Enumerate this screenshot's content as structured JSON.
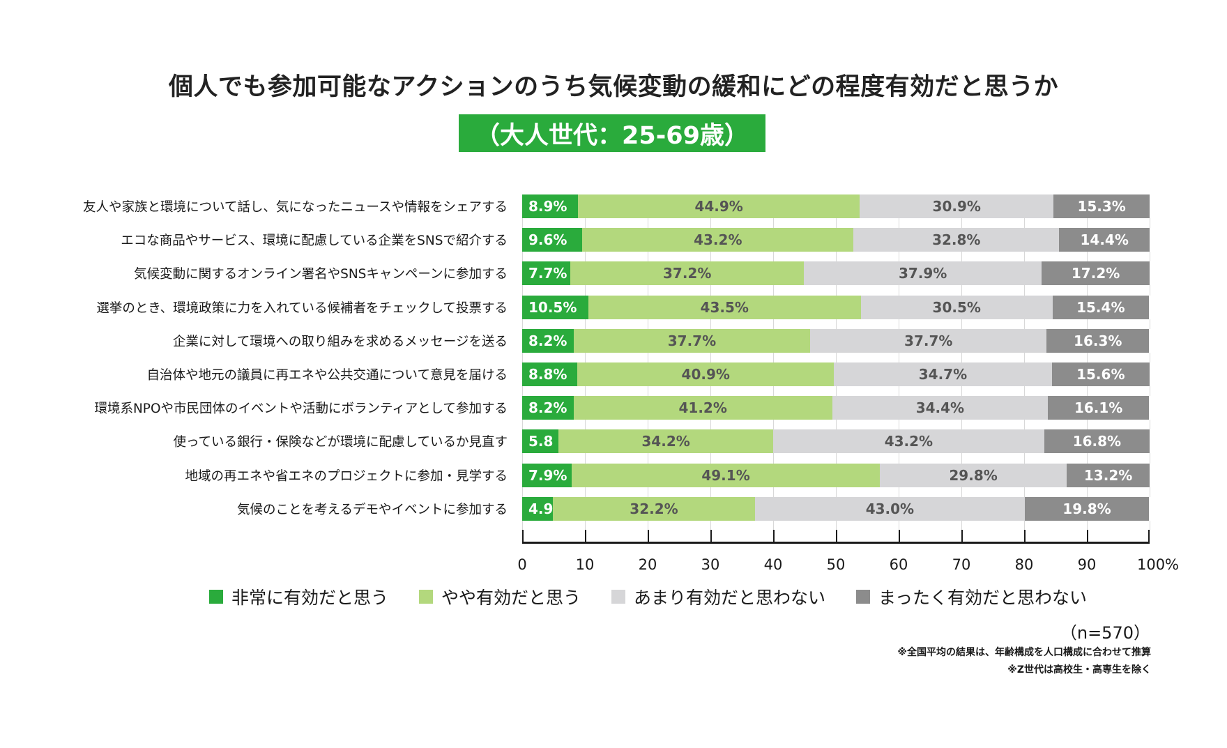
{
  "title": "個人でも参加可能なアクションのうち気候変動の緩和にどの程度有効だと思うか",
  "subtitle": "（大人世代：25-69歳）",
  "legend": [
    {
      "label": "非常に有効だと思う",
      "color": "#2aab3c"
    },
    {
      "label": "やや有効だと思う",
      "color": "#b3d87d"
    },
    {
      "label": "あまり有効だと思わない",
      "color": "#d6d6d8"
    },
    {
      "label": "まったく有効だと思わない",
      "color": "#8c8c8c"
    }
  ],
  "sample_size": "（n=570）",
  "notes": [
    "※全国平均の結果は、年齢構成を人口構成に合わせて推算",
    "※Z世代は高校生・高専生を除く"
  ],
  "chart_data": {
    "type": "bar",
    "orientation": "horizontal",
    "stacked": true,
    "title": "個人でも参加可能なアクションのうち気候変動の緩和にどの程度有効だと思うか",
    "subtitle": "（大人世代：25-69歳）",
    "xlabel": "",
    "ylabel": "",
    "xlim": [
      0,
      100
    ],
    "x_ticks": [
      "0",
      "10",
      "20",
      "30",
      "40",
      "50",
      "60",
      "70",
      "80",
      "90",
      "100%"
    ],
    "legend_position": "bottom",
    "categories": [
      "友人や家族と環境について話し、気になったニュースや情報をシェアする",
      "エコな商品やサービス、環境に配慮している企業をSNSで紹介する",
      "気候変動に関するオンライン署名やSNSキャンペーンに参加する",
      "選挙のとき、環境政策に力を入れている候補者をチェックして投票する",
      "企業に対して環境への取り組みを求めるメッセージを送る",
      "自治体や地元の議員に再エネや公共交通について意見を届ける",
      "環境系NPOや市民団体のイベントや活動にボランティアとして参加する",
      "使っている銀行・保険などが環境に配慮しているか見直す",
      "地域の再エネや省エネのプロジェクトに参加・見学する",
      "気候のことを考えるデモやイベントに参加する"
    ],
    "series": [
      {
        "name": "非常に有効だと思う",
        "color": "#2aab3c",
        "values": [
          8.9,
          9.6,
          7.7,
          10.5,
          8.2,
          8.8,
          8.2,
          5.8,
          7.9,
          4.9
        ],
        "labels": [
          "8.9%",
          "9.6%",
          "7.7%",
          "10.5%",
          "8.2%",
          "8.8%",
          "8.2%",
          "5.8",
          "7.9%",
          "4.9"
        ]
      },
      {
        "name": "やや有効だと思う",
        "color": "#b3d87d",
        "values": [
          44.9,
          43.2,
          37.2,
          43.5,
          37.7,
          40.9,
          41.2,
          34.2,
          49.1,
          32.2
        ],
        "labels": [
          "44.9%",
          "43.2%",
          "37.2%",
          "43.5%",
          "37.7%",
          "40.9%",
          "41.2%",
          "34.2%",
          "49.1%",
          "32.2%"
        ]
      },
      {
        "name": "あまり有効だと思わない",
        "color": "#d6d6d8",
        "values": [
          30.9,
          32.8,
          37.9,
          30.5,
          37.7,
          34.7,
          34.4,
          43.2,
          29.8,
          43.0
        ],
        "labels": [
          "30.9%",
          "32.8%",
          "37.9%",
          "30.5%",
          "37.7%",
          "34.7%",
          "34.4%",
          "43.2%",
          "29.8%",
          "43.0%"
        ]
      },
      {
        "name": "まったく有効だと思わない",
        "color": "#8c8c8c",
        "values": [
          15.3,
          14.4,
          17.2,
          15.4,
          16.3,
          15.6,
          16.1,
          16.8,
          13.2,
          19.8
        ],
        "labels": [
          "15.3%",
          "14.4%",
          "17.2%",
          "15.4%",
          "16.3%",
          "15.6%",
          "16.1%",
          "16.8%",
          "13.2%",
          "19.8%"
        ]
      }
    ]
  }
}
